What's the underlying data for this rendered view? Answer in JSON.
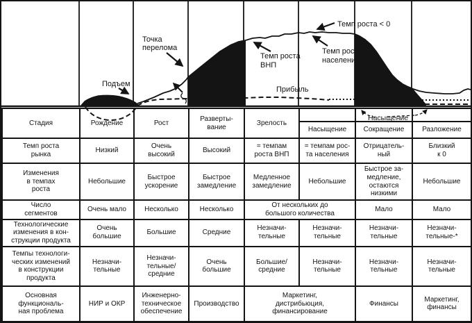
{
  "colors": {
    "ink": "#141414",
    "paper": "#ffffff"
  },
  "chart": {
    "labels": {
      "rise": "Подъем",
      "breakpoint_line1": "Точка",
      "breakpoint_line2": "перелома",
      "gnp_line1": "Темп роста",
      "gnp_line2": "ВНП",
      "population_line1": "Темп роста",
      "population_line2": "населения",
      "negative_growth": "Темп роста < 0",
      "profit": "Прибыль",
      "saturation": "Насыщение"
    },
    "curves": {
      "solid": "темп роста рынка",
      "dashed": "прибыль"
    }
  },
  "table": {
    "header": {
      "row_label": "Стадия",
      "stages_main": [
        "Рождение",
        "Рост",
        "Разверты-\nвание",
        "Зрелость"
      ],
      "stages_sub": [
        "Насыщение",
        "Сокращение",
        "Разложение"
      ]
    },
    "rows": [
      {
        "label": "Темп роста\nрынка",
        "cells": [
          {
            "t": "Низкий"
          },
          {
            "t": "Очень\nвысокий"
          },
          {
            "t": "Высокий"
          },
          {
            "t": "= темпам\nроста ВНП"
          },
          {
            "t": "= темпам рос-\nта населения"
          },
          {
            "t": "Отрицатель-\nный"
          },
          {
            "t": "Близкий\nк 0"
          }
        ]
      },
      {
        "label": "Изменения\nв темпах\nроста",
        "cells": [
          {
            "t": "Небольшие"
          },
          {
            "t": "Быстрое\nускорение"
          },
          {
            "t": "Быстрое\nзамедление"
          },
          {
            "t": "Медленное\nзамедление"
          },
          {
            "t": "Небольшие"
          },
          {
            "t": "Быстрое за-\nмедление,\nостаются\nнизкими"
          },
          {
            "t": "Небольшие"
          }
        ]
      },
      {
        "label": "Число\nсегментов",
        "cells": [
          {
            "t": "Очень мало"
          },
          {
            "t": "Несколько"
          },
          {
            "t": "Несколько"
          },
          {
            "t": "От нескольких до\nбольшого количества",
            "span": 2
          },
          {
            "t": "Мало"
          },
          {
            "t": "Мало"
          }
        ]
      },
      {
        "label": "Технологические\nизменения в кон-\nструкции продукта",
        "cells": [
          {
            "t": "Очень\nбольшие"
          },
          {
            "t": "Большие"
          },
          {
            "t": "Средние"
          },
          {
            "t": "Незначи-\nтельные"
          },
          {
            "t": "Незначи-\nтельные"
          },
          {
            "t": "Незначи-\nтельные"
          },
          {
            "t": "Незначи-\nтельные-*"
          }
        ]
      },
      {
        "label": "Темпы технологи-\nческих изменений\nв конструкции\nпродукта",
        "cells": [
          {
            "t": "Незначи-\nтельные"
          },
          {
            "t": "Незначи-\nтельные/\nсредние"
          },
          {
            "t": "Очень\nбольшие"
          },
          {
            "t": "Большие/\nсредние"
          },
          {
            "t": "Незначи-\nтельные"
          },
          {
            "t": "Незначи-\nтельные"
          },
          {
            "t": "Незначи-\nтельные"
          }
        ]
      },
      {
        "label": "Основная\nфункциональ-\nная проблема",
        "cells": [
          {
            "t": "НИР и ОКР"
          },
          {
            "t": "Инженерно-\nтехническое\nобеспечение"
          },
          {
            "t": "Производство"
          },
          {
            "t": "Маркетинг,\nдистрибьюция,\nфинансирование",
            "span": 2
          },
          {
            "t": "Финансы"
          },
          {
            "t": "Маркетинг,\nфинансы"
          }
        ]
      }
    ]
  }
}
